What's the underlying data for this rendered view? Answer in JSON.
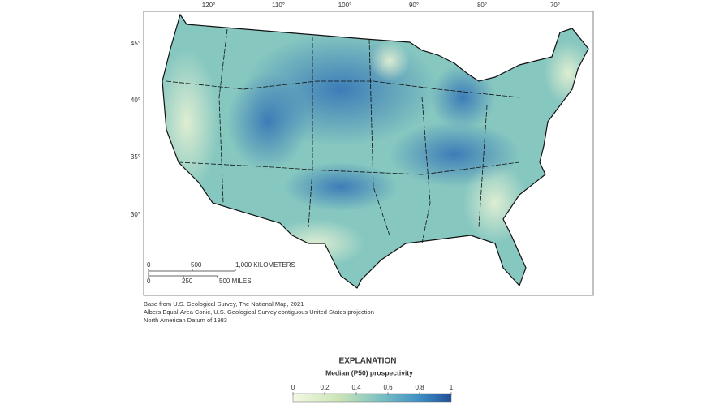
{
  "map": {
    "longitude_labels": [
      "120°",
      "110°",
      "100°",
      "90°",
      "80°",
      "70°"
    ],
    "latitude_labels": [
      "45°",
      "40°",
      "35°",
      "30°"
    ],
    "scale_bar": {
      "kilometer_labels": [
        "0",
        "500",
        "1,000 KILOMETERS"
      ],
      "mile_labels": [
        "0",
        "250",
        "500 MILES"
      ]
    },
    "source_lines": [
      "Base from U.S. Geological Survey, The National Map, 2021",
      "Albers Equal-Area Conic, U.S. Geological Survey contiguous United States projection",
      "North American Datum of 1983"
    ]
  },
  "explanation": {
    "title": "EXPLANATION",
    "subtitle": "Median (P50) prospectivity",
    "colorbar_ticks": [
      0,
      0.2,
      0.4,
      0.6,
      0.8,
      1
    ]
  }
}
